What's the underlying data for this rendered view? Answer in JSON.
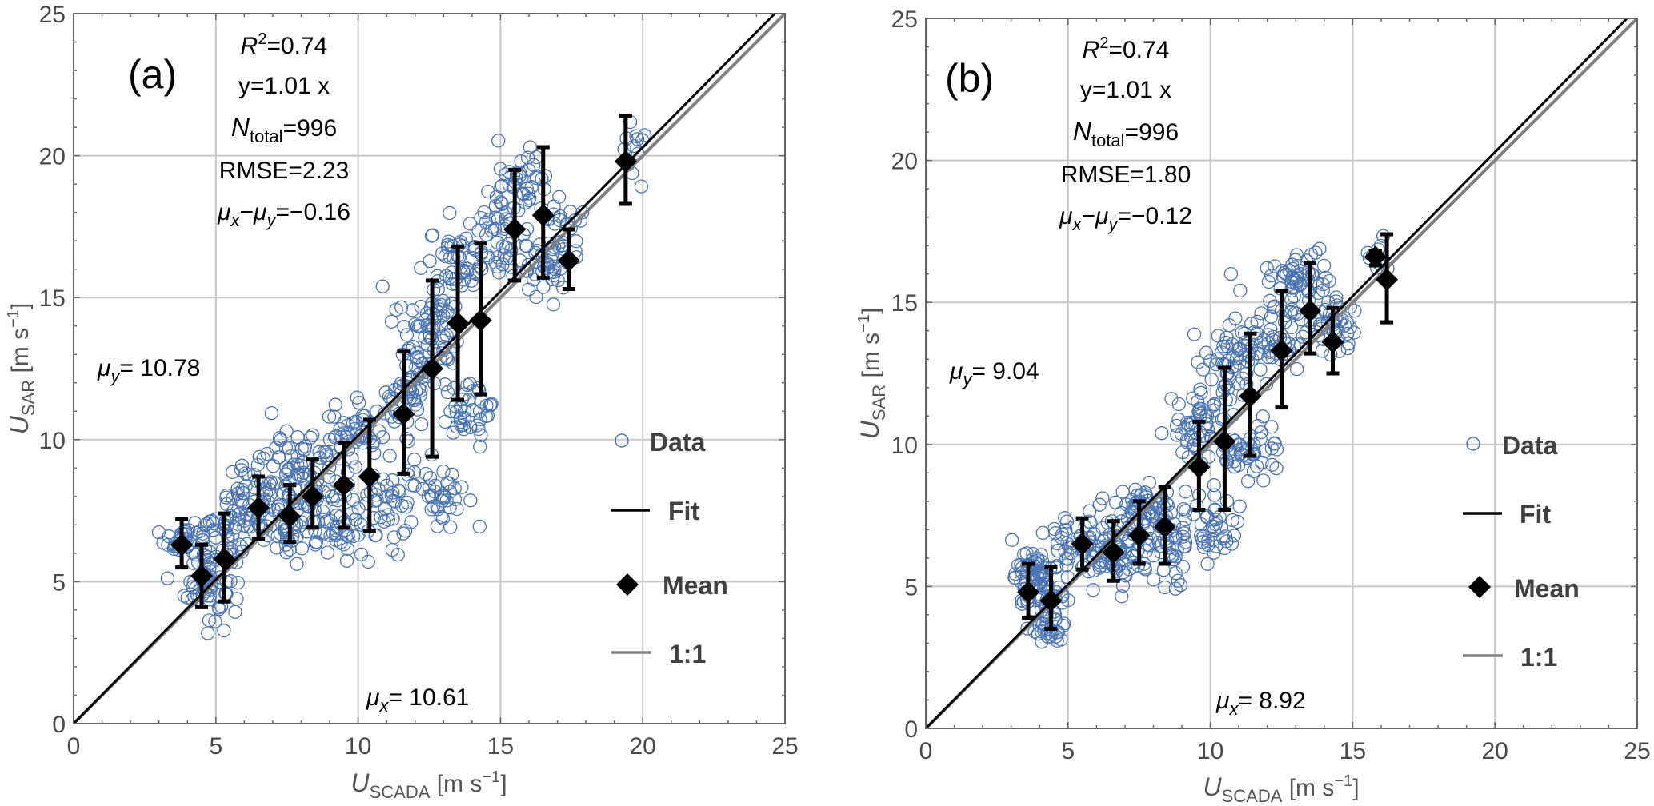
{
  "chart_data": [
    {
      "type": "scatter",
      "panel_label": "(a)",
      "xlabel": {
        "main": "U",
        "sub": "SCADA",
        "unit": " [m s",
        "sup": "−1",
        "close": "]"
      },
      "ylabel": {
        "main": "U",
        "sub": "SAR",
        "unit": " [m s",
        "sup": "−1",
        "close": "]"
      },
      "xlim": [
        0,
        25
      ],
      "ylim": [
        0,
        25
      ],
      "xticks": [
        "0",
        "5",
        "10",
        "15",
        "20",
        "25"
      ],
      "yticks": [
        "0",
        "5",
        "10",
        "15",
        "20",
        "25"
      ],
      "grid": true,
      "stats": {
        "r2": "=0.74",
        "fit": "y=1.01 x",
        "ntotal": "=996",
        "rmse": "RMSE=2.23",
        "mudiff": "=−0.16"
      },
      "mu_y": "= 10.78",
      "mu_x": "= 10.61",
      "fit_slope": 1.01,
      "legend": {
        "position": "right",
        "items": [
          "Data",
          "Fit",
          "Mean",
          "1:1"
        ]
      },
      "means": [
        {
          "x": 3.8,
          "y": 6.3,
          "lo": 5.5,
          "hi": 7.2
        },
        {
          "x": 4.5,
          "y": 5.2,
          "lo": 4.1,
          "hi": 6.3
        },
        {
          "x": 5.3,
          "y": 5.8,
          "lo": 4.3,
          "hi": 7.4
        },
        {
          "x": 6.5,
          "y": 7.6,
          "lo": 6.5,
          "hi": 8.7
        },
        {
          "x": 7.6,
          "y": 7.3,
          "lo": 6.4,
          "hi": 8.4
        },
        {
          "x": 8.4,
          "y": 8.0,
          "lo": 6.9,
          "hi": 9.3
        },
        {
          "x": 9.5,
          "y": 8.4,
          "lo": 6.9,
          "hi": 9.9
        },
        {
          "x": 10.4,
          "y": 8.7,
          "lo": 6.8,
          "hi": 10.7
        },
        {
          "x": 11.6,
          "y": 10.9,
          "lo": 8.8,
          "hi": 13.1
        },
        {
          "x": 12.6,
          "y": 12.5,
          "lo": 9.4,
          "hi": 15.6
        },
        {
          "x": 13.5,
          "y": 14.1,
          "lo": 11.4,
          "hi": 16.8
        },
        {
          "x": 14.3,
          "y": 14.2,
          "lo": 11.6,
          "hi": 16.9
        },
        {
          "x": 15.5,
          "y": 17.4,
          "lo": 15.6,
          "hi": 19.5
        },
        {
          "x": 16.5,
          "y": 17.9,
          "lo": 15.7,
          "hi": 20.3
        },
        {
          "x": 17.4,
          "y": 16.3,
          "lo": 15.3,
          "hi": 17.4
        },
        {
          "x": 19.4,
          "y": 19.8,
          "lo": 18.3,
          "hi": 21.4
        }
      ],
      "data_clusters": [
        {
          "x": 4.0,
          "y": 6.5,
          "sx": 0.4,
          "sy": 0.4,
          "n": 40
        },
        {
          "x": 4.7,
          "y": 4.9,
          "sx": 0.4,
          "sy": 0.6,
          "n": 55
        },
        {
          "x": 5.5,
          "y": 6.8,
          "sx": 0.6,
          "sy": 0.6,
          "n": 50
        },
        {
          "x": 6.6,
          "y": 8.0,
          "sx": 0.6,
          "sy": 0.6,
          "n": 55
        },
        {
          "x": 7.8,
          "y": 7.0,
          "sx": 0.6,
          "sy": 0.6,
          "n": 55
        },
        {
          "x": 8.3,
          "y": 9.3,
          "sx": 0.7,
          "sy": 0.6,
          "n": 55
        },
        {
          "x": 9.4,
          "y": 7.2,
          "sx": 0.6,
          "sy": 0.6,
          "n": 45
        },
        {
          "x": 9.8,
          "y": 10.2,
          "sx": 0.5,
          "sy": 0.5,
          "n": 40
        },
        {
          "x": 11.0,
          "y": 7.5,
          "sx": 0.6,
          "sy": 0.8,
          "n": 40
        },
        {
          "x": 11.8,
          "y": 11.8,
          "sx": 0.5,
          "sy": 0.9,
          "n": 55
        },
        {
          "x": 12.6,
          "y": 14.2,
          "sx": 0.6,
          "sy": 0.9,
          "n": 65
        },
        {
          "x": 12.8,
          "y": 8.2,
          "sx": 0.5,
          "sy": 0.6,
          "n": 40
        },
        {
          "x": 13.5,
          "y": 16.3,
          "sx": 0.5,
          "sy": 0.6,
          "n": 45
        },
        {
          "x": 14.0,
          "y": 11.0,
          "sx": 0.6,
          "sy": 0.6,
          "n": 40
        },
        {
          "x": 15.0,
          "y": 17.0,
          "sx": 0.5,
          "sy": 0.8,
          "n": 45
        },
        {
          "x": 15.8,
          "y": 19.0,
          "sx": 0.5,
          "sy": 0.7,
          "n": 40
        },
        {
          "x": 16.6,
          "y": 15.8,
          "sx": 0.4,
          "sy": 0.6,
          "n": 35
        },
        {
          "x": 17.2,
          "y": 17.6,
          "sx": 0.4,
          "sy": 0.6,
          "n": 25
        },
        {
          "x": 19.6,
          "y": 20.2,
          "sx": 0.3,
          "sy": 0.6,
          "n": 12
        }
      ],
      "colors": {
        "data": "#4a74b4",
        "fit": "#000000",
        "mean": "#000000",
        "one_to_one": "#808080",
        "grid": "#c8c8c8"
      }
    },
    {
      "type": "scatter",
      "panel_label": "(b)",
      "xlabel": {
        "main": "U",
        "sub": "SCADA",
        "unit": " [m s",
        "sup": "−1",
        "close": "]"
      },
      "ylabel": {
        "main": "U",
        "sub": "SAR",
        "unit": " [m s",
        "sup": "−1",
        "close": "]"
      },
      "xlim": [
        0,
        25
      ],
      "ylim": [
        0,
        25
      ],
      "xticks": [
        "0",
        "5",
        "10",
        "15",
        "20",
        "25"
      ],
      "yticks": [
        "0",
        "5",
        "10",
        "15",
        "20",
        "25"
      ],
      "grid": true,
      "stats": {
        "r2": "=0.74",
        "fit": "y=1.01 x",
        "ntotal": "=996",
        "rmse": "RMSE=1.80",
        "mudiff": "=−0.12"
      },
      "mu_y": "=  9.04",
      "mu_x": "=  8.92",
      "fit_slope": 1.01,
      "legend": {
        "position": "right",
        "items": [
          "Data",
          "Fit",
          "Mean",
          "1:1"
        ]
      },
      "means": [
        {
          "x": 3.6,
          "y": 4.8,
          "lo": 3.9,
          "hi": 5.8
        },
        {
          "x": 4.4,
          "y": 4.5,
          "lo": 3.5,
          "hi": 5.7
        },
        {
          "x": 5.5,
          "y": 6.5,
          "lo": 5.6,
          "hi": 7.4
        },
        {
          "x": 6.6,
          "y": 6.2,
          "lo": 5.2,
          "hi": 7.3
        },
        {
          "x": 7.5,
          "y": 6.8,
          "lo": 5.8,
          "hi": 8.0
        },
        {
          "x": 8.4,
          "y": 7.1,
          "lo": 5.8,
          "hi": 8.5
        },
        {
          "x": 9.6,
          "y": 9.2,
          "lo": 7.7,
          "hi": 10.8
        },
        {
          "x": 10.5,
          "y": 10.1,
          "lo": 7.7,
          "hi": 12.7
        },
        {
          "x": 11.4,
          "y": 11.7,
          "lo": 9.6,
          "hi": 13.9
        },
        {
          "x": 12.5,
          "y": 13.3,
          "lo": 11.3,
          "hi": 15.4
        },
        {
          "x": 13.5,
          "y": 14.7,
          "lo": 13.2,
          "hi": 16.4
        },
        {
          "x": 14.3,
          "y": 13.6,
          "lo": 12.5,
          "hi": 14.8
        },
        {
          "x": 15.8,
          "y": 16.6,
          "lo": 16.3,
          "hi": 16.8
        },
        {
          "x": 16.2,
          "y": 15.8,
          "lo": 14.3,
          "hi": 17.4
        }
      ],
      "data_clusters": [
        {
          "x": 3.8,
          "y": 5.2,
          "sx": 0.35,
          "sy": 0.5,
          "n": 60
        },
        {
          "x": 4.4,
          "y": 4.0,
          "sx": 0.3,
          "sy": 0.6,
          "n": 50
        },
        {
          "x": 5.5,
          "y": 6.5,
          "sx": 0.6,
          "sy": 0.5,
          "n": 55
        },
        {
          "x": 6.8,
          "y": 6.0,
          "sx": 0.6,
          "sy": 0.6,
          "n": 60
        },
        {
          "x": 7.5,
          "y": 7.8,
          "sx": 0.6,
          "sy": 0.5,
          "n": 55
        },
        {
          "x": 8.5,
          "y": 6.5,
          "sx": 0.5,
          "sy": 0.6,
          "n": 45
        },
        {
          "x": 9.6,
          "y": 10.5,
          "sx": 0.5,
          "sy": 0.8,
          "n": 55
        },
        {
          "x": 10.0,
          "y": 7.0,
          "sx": 0.5,
          "sy": 0.7,
          "n": 40
        },
        {
          "x": 10.8,
          "y": 12.8,
          "sx": 0.5,
          "sy": 0.8,
          "n": 55
        },
        {
          "x": 11.3,
          "y": 9.8,
          "sx": 0.6,
          "sy": 0.5,
          "n": 45
        },
        {
          "x": 12.3,
          "y": 14.0,
          "sx": 0.6,
          "sy": 0.7,
          "n": 60
        },
        {
          "x": 13.2,
          "y": 15.8,
          "sx": 0.5,
          "sy": 0.5,
          "n": 45
        },
        {
          "x": 14.2,
          "y": 14.2,
          "sx": 0.5,
          "sy": 0.6,
          "n": 40
        },
        {
          "x": 15.9,
          "y": 16.6,
          "sx": 0.2,
          "sy": 0.3,
          "n": 10
        }
      ],
      "colors": {
        "data": "#4a74b4",
        "fit": "#000000",
        "mean": "#000000",
        "one_to_one": "#808080",
        "grid": "#c8c8c8"
      }
    }
  ]
}
